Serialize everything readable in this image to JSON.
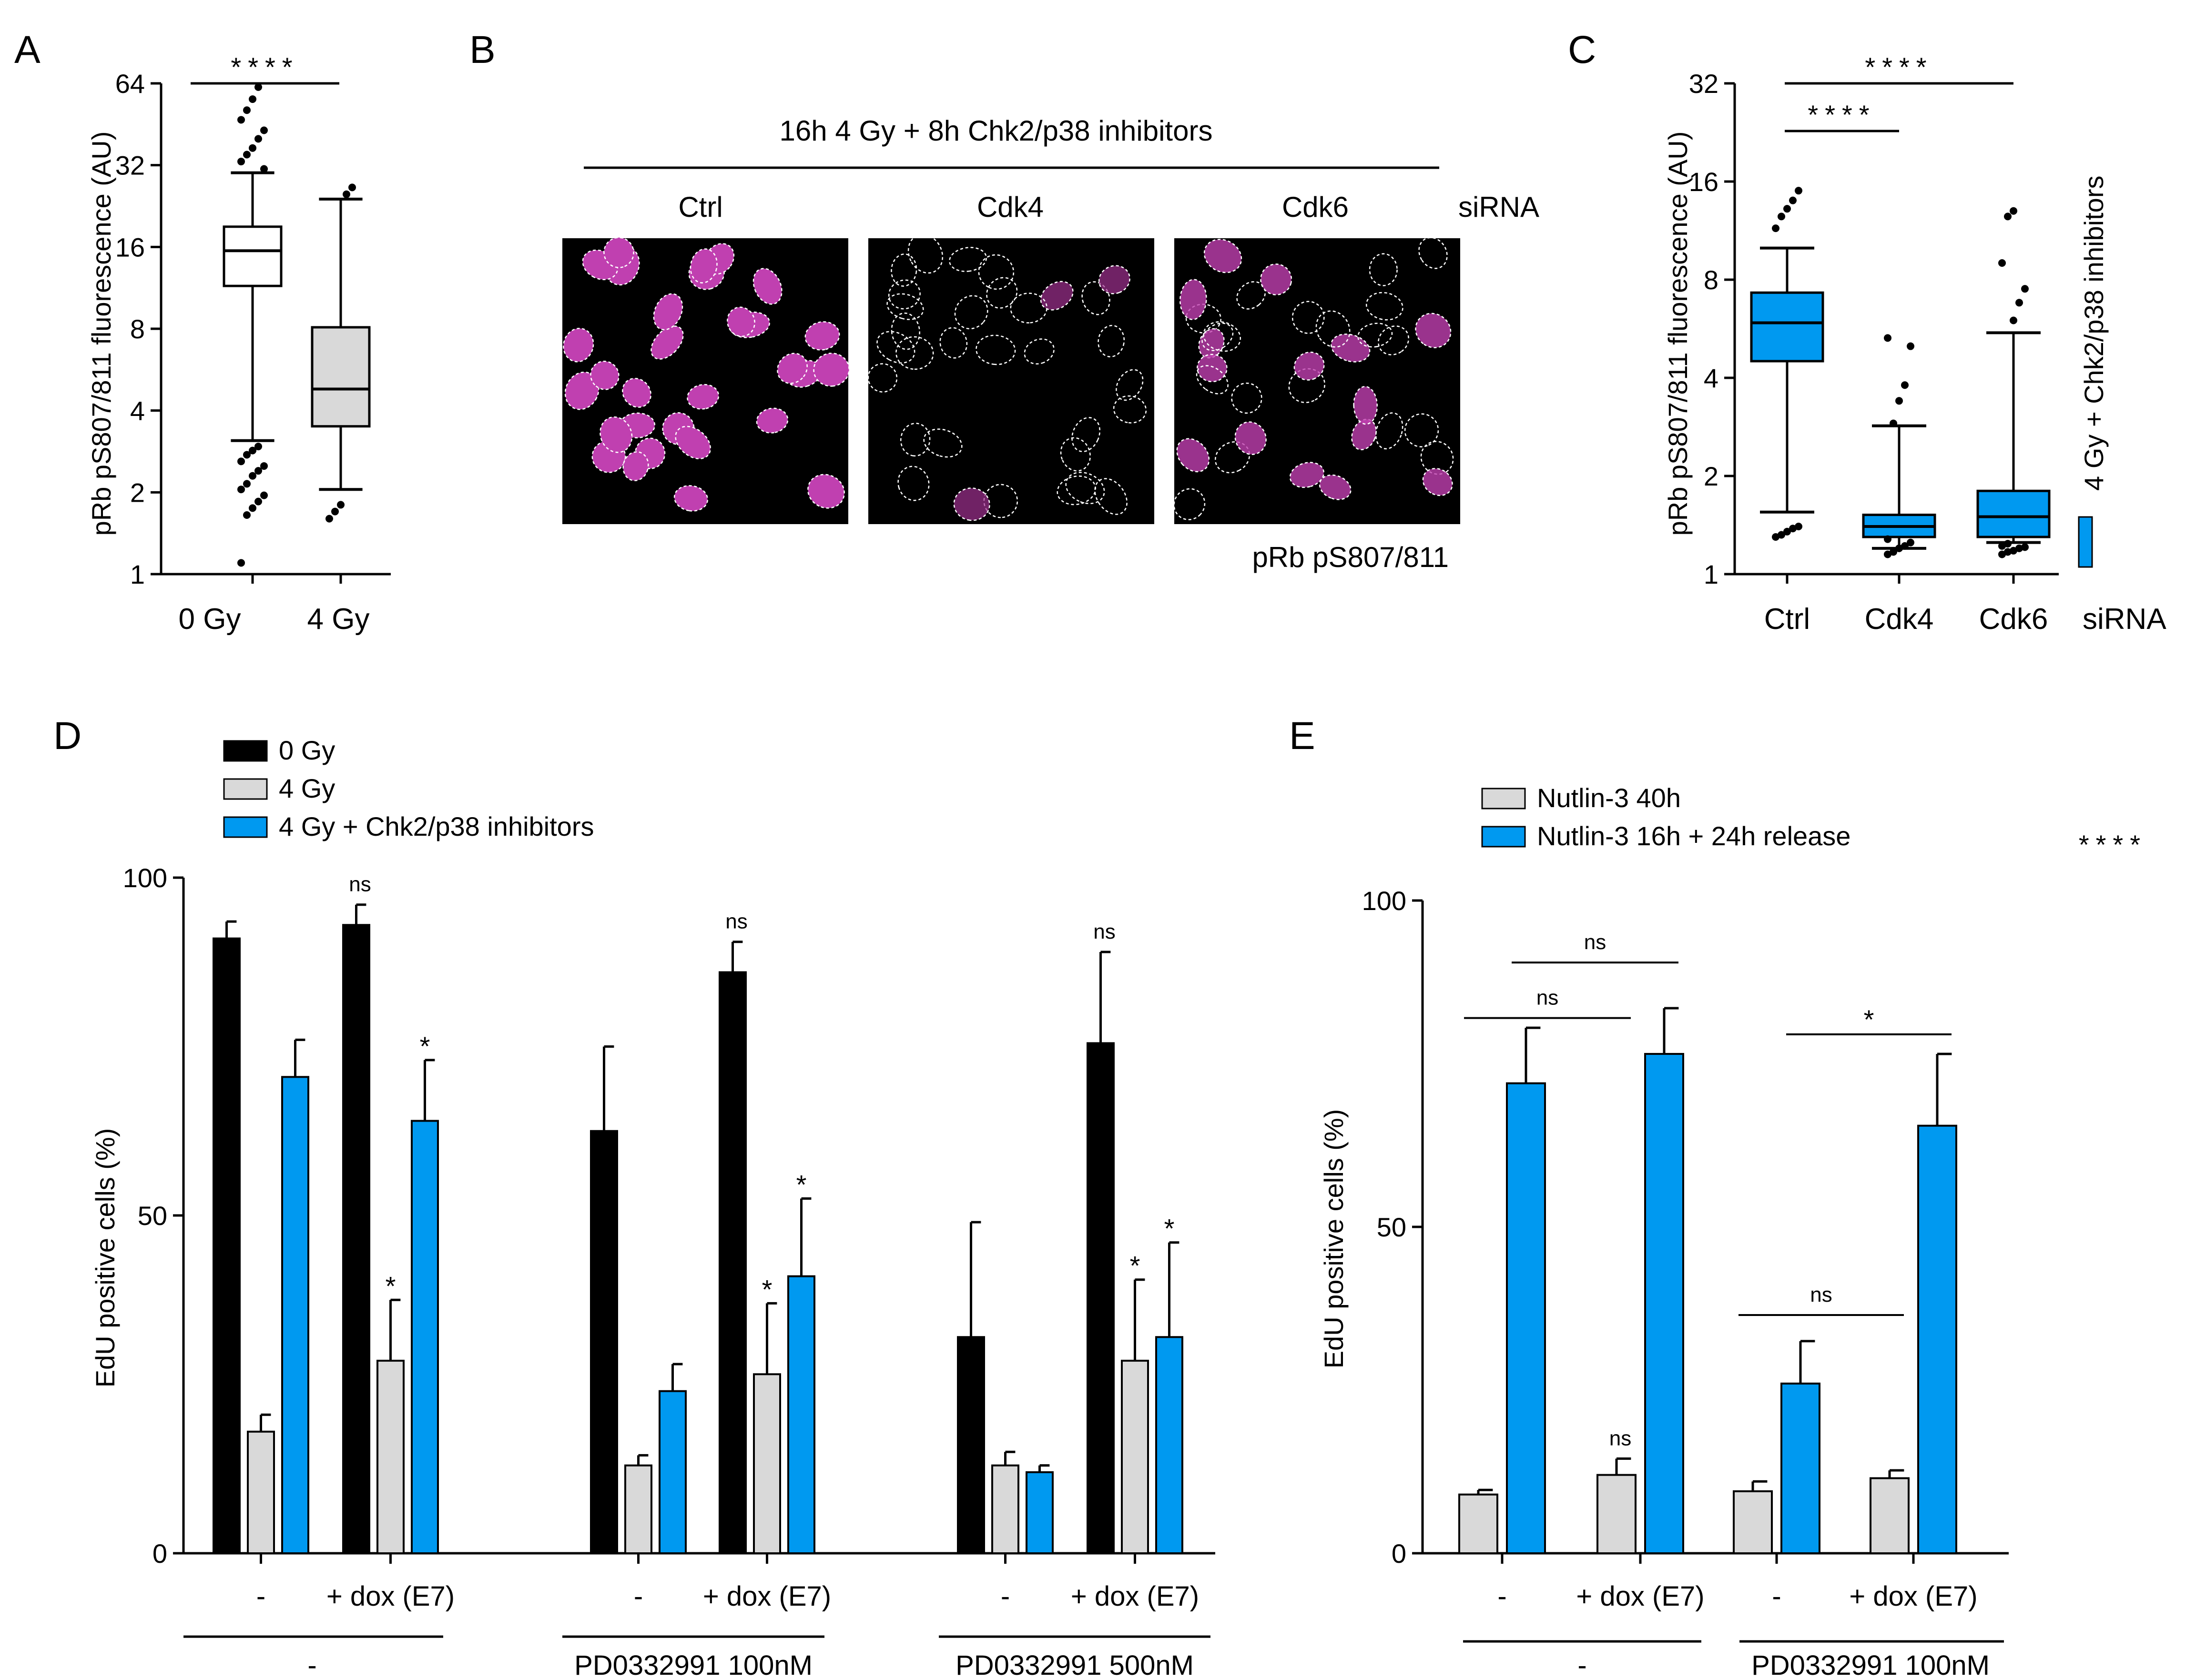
{
  "colors": {
    "black": "#000000",
    "gray": "#d9d9d9",
    "blue": "#0099f0",
    "magenta": "#c040b0"
  },
  "panels": {
    "A": {
      "letter": "A"
    },
    "B": {
      "letter": "B"
    },
    "C": {
      "letter": "C"
    },
    "D": {
      "letter": "D"
    },
    "E": {
      "letter": "E"
    }
  },
  "chart_data": [
    {
      "id": "A",
      "type": "box",
      "ylabel": "pRb pS807/811 fluorescence (AU)",
      "yscale": "log2",
      "ylim": [
        1,
        64
      ],
      "yticks": [
        1,
        2,
        4,
        8,
        16,
        32,
        64
      ],
      "ytick_labels": [
        "1",
        "2",
        "4",
        "8",
        "16",
        "32",
        "64"
      ],
      "categories": [
        "0 Gy",
        "4 Gy"
      ],
      "boxes": [
        {
          "name": "0 Gy",
          "color": "#ffffff",
          "whisker_low": 3.1,
          "q1": 11.5,
          "median": 15.5,
          "q3": 19,
          "whisker_high": 30,
          "outliers": [
            1.1,
            1.65,
            1.75,
            1.85,
            1.95,
            2.05,
            2.15,
            2.3,
            2.4,
            2.5,
            2.6,
            2.75,
            2.85,
            2.95,
            31,
            33,
            35,
            37,
            40,
            43,
            47,
            51,
            56,
            62
          ]
        },
        {
          "name": "4 Gy",
          "color": "#d9d9d9",
          "whisker_low": 2.05,
          "q1": 3.5,
          "median": 4.8,
          "q3": 8.1,
          "whisker_high": 24,
          "outliers": [
            1.6,
            1.7,
            1.8,
            25,
            26.5
          ]
        }
      ],
      "significance": [
        {
          "from": "0 Gy",
          "to": "4 Gy",
          "label": "****"
        }
      ]
    },
    {
      "id": "B",
      "type": "image-panels",
      "title": "16h 4 Gy + 8h Chk2/p38 inhibitors",
      "labels": [
        "Ctrl",
        "Cdk4",
        "Cdk6"
      ],
      "side_label": "siRNA",
      "caption": "pRb pS807/811"
    },
    {
      "id": "C",
      "type": "box",
      "ylabel": "pRb pS807/811 fluorescence (AU)",
      "yscale": "log2",
      "ylim": [
        1,
        32
      ],
      "yticks": [
        1,
        2,
        4,
        8,
        16,
        32
      ],
      "ytick_labels": [
        "1",
        "2",
        "4",
        "8",
        "16",
        "32"
      ],
      "categories": [
        "Ctrl",
        "Cdk4",
        "Cdk6"
      ],
      "xaxis_label": "siRNA",
      "side_label": "4 Gy + Chk2/p38 inhibitors",
      "boxes": [
        {
          "name": "Ctrl",
          "color": "#0099f0",
          "whisker_low": 1.55,
          "q1": 4.5,
          "median": 5.9,
          "q3": 7.3,
          "whisker_high": 10,
          "outliers": [
            1.3,
            1.32,
            1.35,
            1.38,
            1.4,
            11.5,
            12.5,
            13.2,
            14,
            15
          ]
        },
        {
          "name": "Cdk4",
          "color": "#0099f0",
          "whisker_low": 1.2,
          "q1": 1.3,
          "median": 1.4,
          "q3": 1.52,
          "whisker_high": 2.85,
          "outliers": [
            1.15,
            1.17,
            1.2,
            1.22,
            1.25,
            1.28,
            2.9,
            3.4,
            3.8,
            5.0,
            5.3
          ]
        },
        {
          "name": "Cdk6",
          "color": "#0099f0",
          "whisker_low": 1.25,
          "q1": 1.3,
          "median": 1.5,
          "q3": 1.8,
          "whisker_high": 5.5,
          "outliers": [
            1.15,
            1.17,
            1.18,
            1.2,
            1.21,
            1.22,
            1.24,
            6.0,
            6.8,
            7.5,
            9.0,
            12.5,
            13.0
          ]
        }
      ],
      "significance": [
        {
          "from": "Ctrl",
          "to": "Cdk4",
          "label": "****"
        },
        {
          "from": "Ctrl",
          "to": "Cdk6",
          "label": "****"
        }
      ]
    },
    {
      "id": "D",
      "type": "bar",
      "ylabel": "EdU positive cells (%)",
      "ylim": [
        0,
        100
      ],
      "yticks": [
        0,
        50,
        100
      ],
      "ytick_labels": [
        "0",
        "50",
        "100"
      ],
      "series": [
        {
          "name": "0 Gy",
          "color": "#000000"
        },
        {
          "name": "4 Gy",
          "color": "#d9d9d9"
        },
        {
          "name": "4 Gy + Chk2/p38 inhibitors",
          "color": "#0099f0"
        }
      ],
      "groups": [
        {
          "label": "-",
          "bars": [
            {
              "s": 0,
              "value": 91,
              "err": 2.5
            },
            {
              "s": 1,
              "value": 18,
              "err": 2.5
            },
            {
              "s": 2,
              "value": 70.5,
              "err": 5.5
            }
          ]
        },
        {
          "label": "+ dox (E7)",
          "bars": [
            {
              "s": 0,
              "value": 93,
              "err": 3,
              "mark": "ns"
            },
            {
              "s": 1,
              "value": 28.5,
              "err": 9,
              "mark": "*"
            },
            {
              "s": 2,
              "value": 64,
              "err": 9,
              "mark": "*"
            }
          ]
        },
        {
          "label": "-",
          "bars": [
            {
              "s": 0,
              "value": 62.5,
              "err": 12.5
            },
            {
              "s": 1,
              "value": 13,
              "err": 1.5
            },
            {
              "s": 2,
              "value": 24,
              "err": 4
            }
          ]
        },
        {
          "label": "+ dox (E7)",
          "bars": [
            {
              "s": 0,
              "value": 86,
              "err": 4.5,
              "mark": "ns"
            },
            {
              "s": 1,
              "value": 26.5,
              "err": 10.5,
              "mark": "*"
            },
            {
              "s": 2,
              "value": 41,
              "err": 11.5,
              "mark": "*"
            }
          ]
        },
        {
          "label": "-",
          "bars": [
            {
              "s": 0,
              "value": 32,
              "err": 17
            },
            {
              "s": 1,
              "value": 13,
              "err": 2
            },
            {
              "s": 2,
              "value": 12,
              "err": 1
            }
          ]
        },
        {
          "label": "+ dox (E7)",
          "bars": [
            {
              "s": 0,
              "value": 75.5,
              "err": 13.5,
              "mark": "ns"
            },
            {
              "s": 1,
              "value": 28.5,
              "err": 12,
              "mark": "*"
            },
            {
              "s": 2,
              "value": 32,
              "err": 14,
              "mark": "*"
            }
          ]
        }
      ],
      "treatments": [
        "-",
        "PD0332991 100nM",
        "PD0332991 500nM"
      ]
    },
    {
      "id": "E",
      "type": "bar",
      "ylabel": "EdU positive cells (%)",
      "ylim": [
        0,
        100
      ],
      "yticks": [
        0,
        50,
        100
      ],
      "ytick_labels": [
        "0",
        "50",
        "100"
      ],
      "series": [
        {
          "name": "Nutlin-3 40h",
          "color": "#d9d9d9"
        },
        {
          "name": "Nutlin-3 16h + 24h release",
          "color": "#0099f0"
        }
      ],
      "legend_note": "****",
      "groups": [
        {
          "label": "-",
          "bars": [
            {
              "s": 0,
              "value": 9,
              "err": 0.7
            },
            {
              "s": 1,
              "value": 72,
              "err": 8.5
            }
          ]
        },
        {
          "label": "+ dox (E7)",
          "bars": [
            {
              "s": 0,
              "value": 12,
              "err": 2.5,
              "mark": "ns"
            },
            {
              "s": 1,
              "value": 76.5,
              "err": 7
            }
          ]
        },
        {
          "label": "-",
          "bars": [
            {
              "s": 0,
              "value": 9.5,
              "err": 1.5
            },
            {
              "s": 1,
              "value": 26,
              "err": 6.5
            }
          ]
        },
        {
          "label": "+ dox (E7)",
          "bars": [
            {
              "s": 0,
              "value": 11.5,
              "err": 1.2
            },
            {
              "s": 1,
              "value": 65.5,
              "err": 11
            }
          ]
        }
      ],
      "brackets": [
        {
          "from_group": 0,
          "to_group": 1,
          "series": 0,
          "label": "ns",
          "level": 82
        },
        {
          "from_group": 0,
          "to_group": 1,
          "series": 1,
          "label": "ns",
          "level": 90.5
        },
        {
          "from_group": 2,
          "to_group": 3,
          "series": 0,
          "label": "ns",
          "level": 36.5
        },
        {
          "from_group": 2,
          "to_group": 3,
          "series": 1,
          "label": "*",
          "level": 79.5
        }
      ],
      "treatments": [
        "-",
        "PD0332991 100nM"
      ]
    }
  ]
}
